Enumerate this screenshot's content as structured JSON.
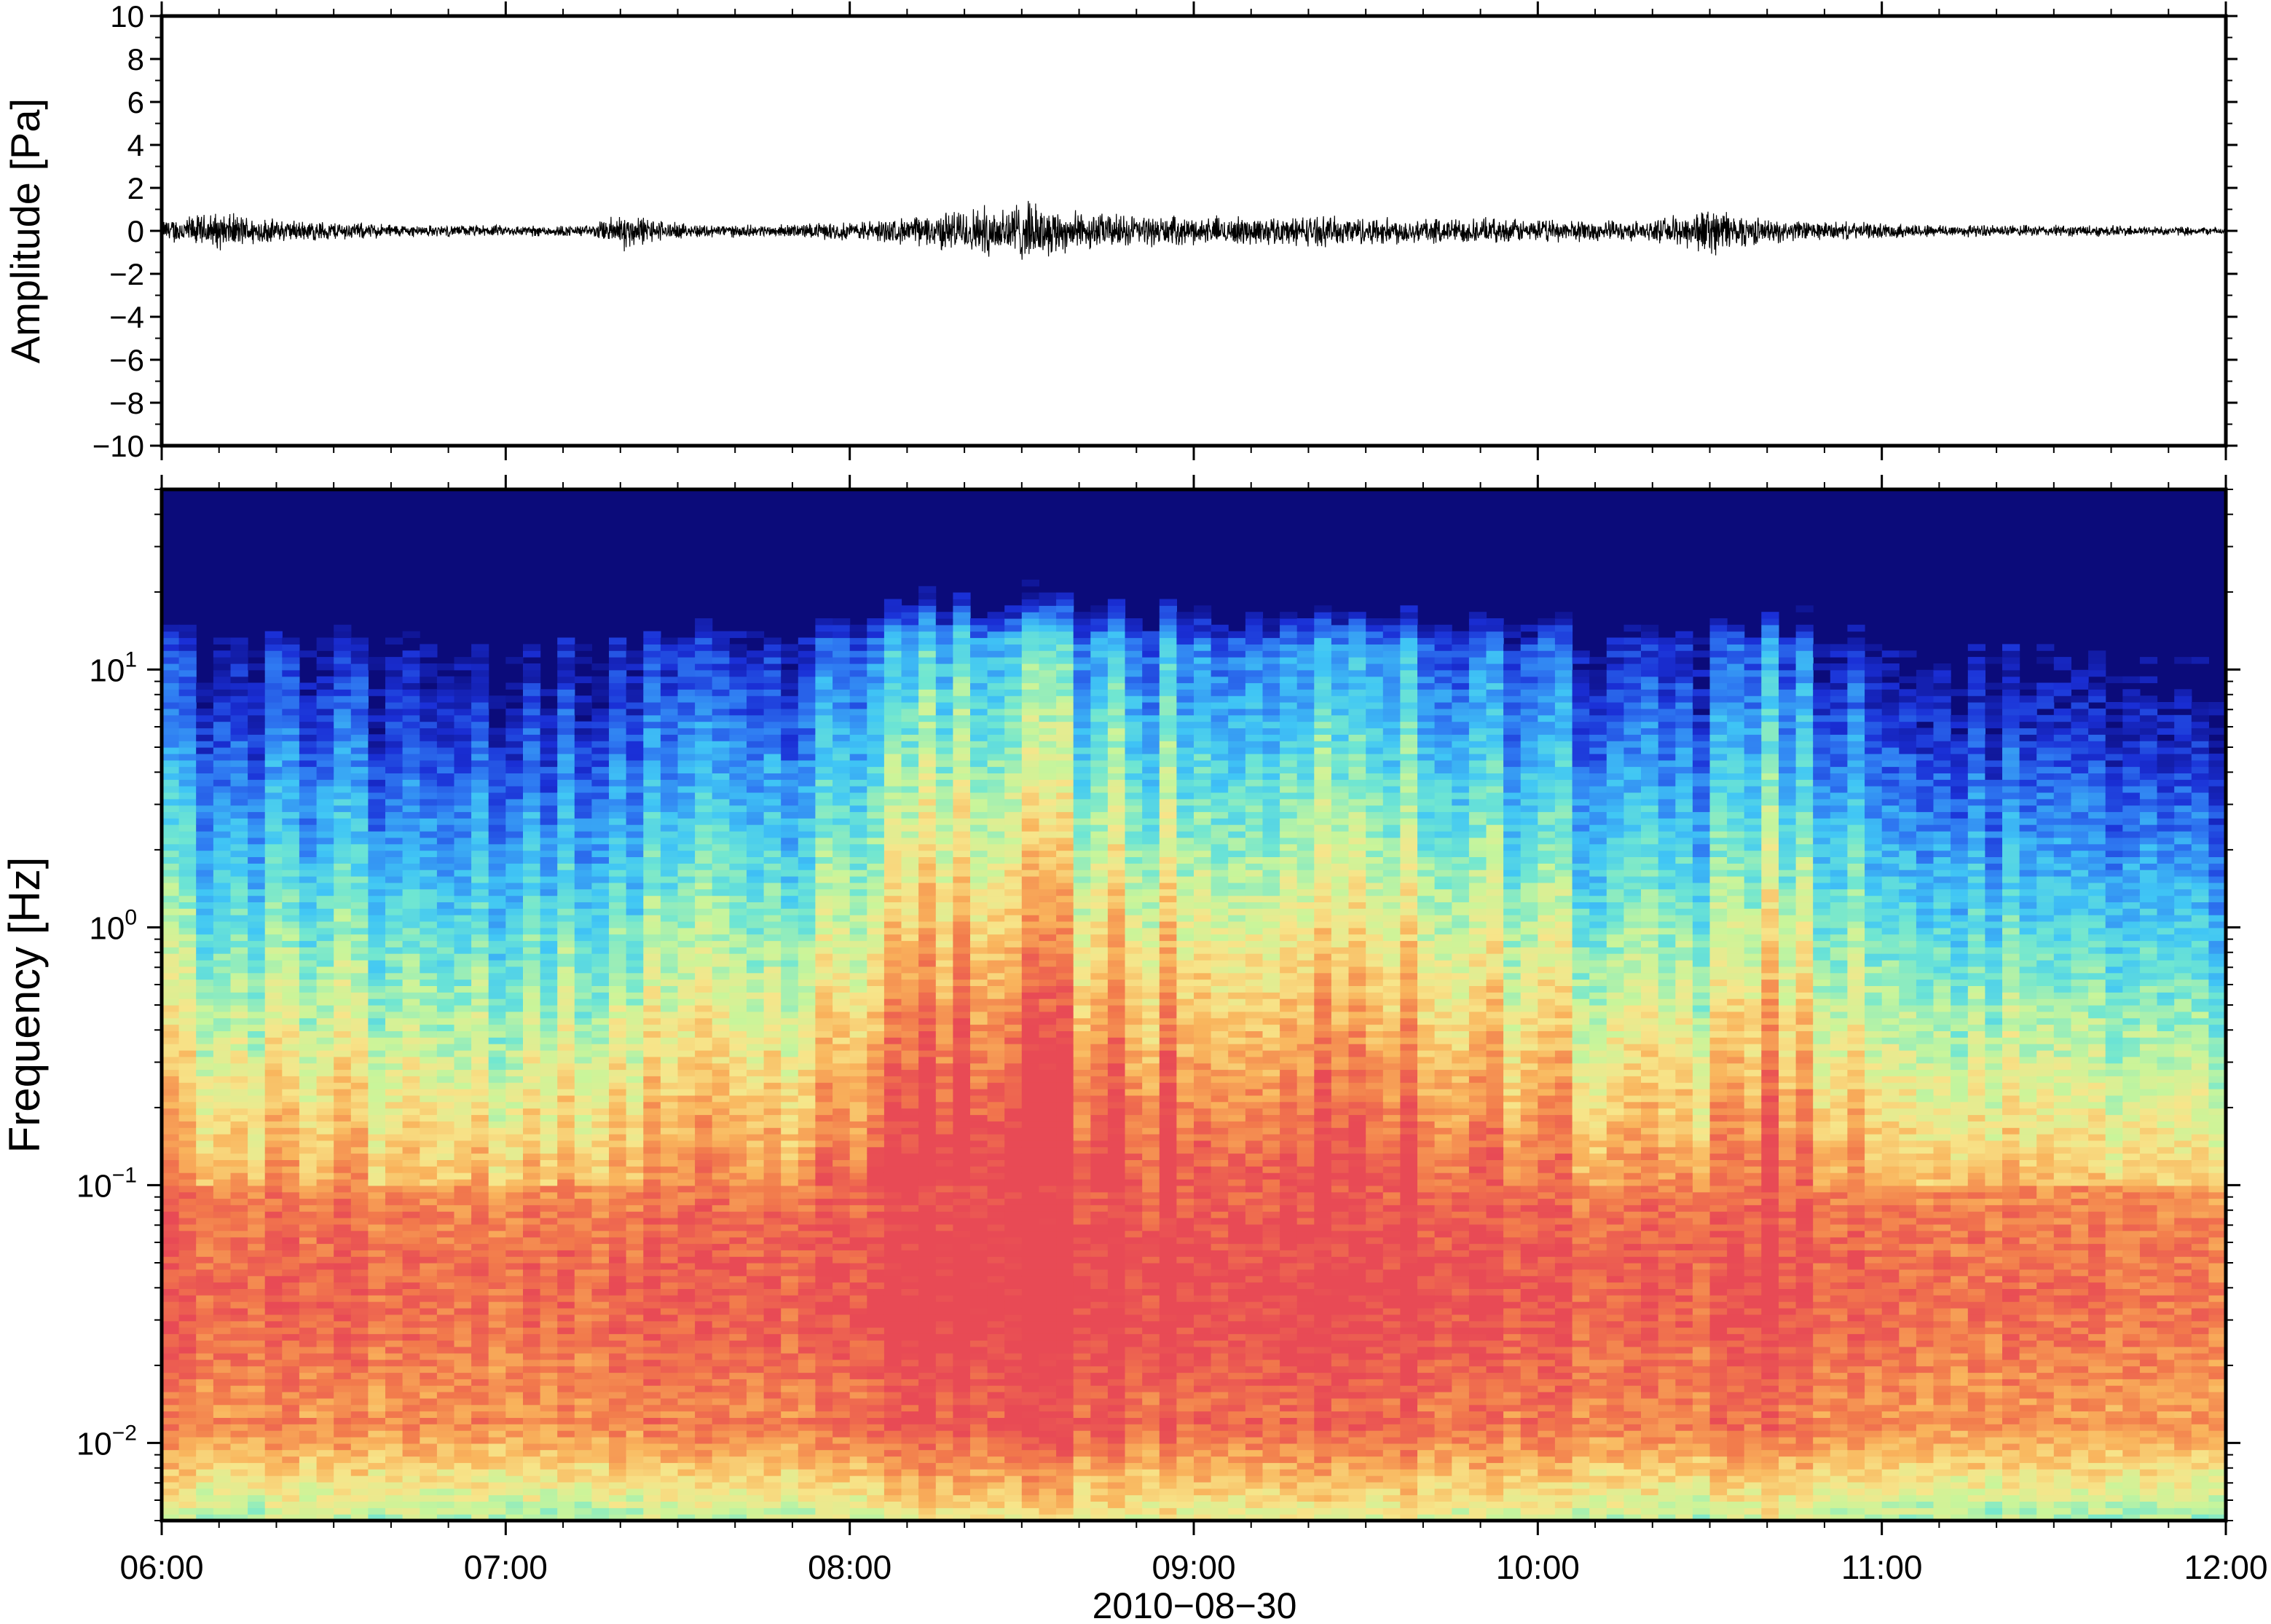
{
  "chart_data": [
    {
      "type": "line",
      "panel": "waveform",
      "ylabel": "Amplitude [Pa]",
      "ylim": [
        -10,
        10
      ],
      "yticks": [
        {
          "value": 10,
          "label": "10"
        },
        {
          "value": 8,
          "label": "8"
        },
        {
          "value": 6,
          "label": "6"
        },
        {
          "value": 4,
          "label": "4"
        },
        {
          "value": 2,
          "label": "2"
        },
        {
          "value": 0,
          "label": "0"
        },
        {
          "value": -2,
          "label": "−2"
        },
        {
          "value": -4,
          "label": "−4"
        },
        {
          "value": -6,
          "label": "−6"
        },
        {
          "value": -8,
          "label": "−8"
        },
        {
          "value": -10,
          "label": "−10"
        }
      ],
      "xlim": [
        "06:00",
        "12:00"
      ],
      "line_color": "#000000",
      "envelope": {
        "description_of_trace": "noise trace, peak amplitude envelope in Pa per time",
        "x": [
          "06:00",
          "06:10",
          "06:20",
          "06:30",
          "06:45",
          "07:00",
          "07:15",
          "07:20",
          "07:30",
          "07:45",
          "08:00",
          "08:10",
          "08:20",
          "08:30",
          "08:40",
          "09:00",
          "09:20",
          "09:40",
          "10:00",
          "10:20",
          "10:30",
          "10:40",
          "11:00",
          "11:20",
          "11:40",
          "12:00"
        ],
        "values": [
          0.6,
          1.0,
          0.6,
          0.5,
          0.3,
          0.3,
          0.3,
          1.0,
          0.4,
          0.3,
          0.5,
          0.7,
          1.2,
          1.6,
          1.0,
          0.7,
          0.8,
          0.7,
          0.6,
          0.5,
          1.3,
          0.6,
          0.4,
          0.3,
          0.3,
          0.2
        ]
      }
    },
    {
      "type": "heatmap",
      "panel": "spectrogram",
      "ylabel": "Frequency [Hz]",
      "yscale": "log",
      "ylim": [
        0.005,
        50
      ],
      "yticks": [
        {
          "value": 10,
          "base": "10",
          "exp": "1"
        },
        {
          "value": 1,
          "base": "10",
          "exp": "0"
        },
        {
          "value": 0.1,
          "base": "10",
          "exp": "−1"
        },
        {
          "value": 0.01,
          "base": "10",
          "exp": "−2"
        }
      ],
      "xlim": [
        "06:00",
        "12:00"
      ],
      "xticks": [
        "06:00",
        "07:00",
        "08:00",
        "09:00",
        "10:00",
        "11:00",
        "12:00"
      ],
      "xlabel": "2010−08−30",
      "colormap": [
        "#0b0b7a",
        "#1a2fd6",
        "#2f7bf2",
        "#40c6f5",
        "#6fe6d2",
        "#c9f59a",
        "#f7e58a",
        "#f9b45c",
        "#f27a4c",
        "#e84a55"
      ],
      "intensity_profile": {
        "time_hours": [
          6.0,
          6.5,
          7.0,
          7.5,
          8.0,
          8.33,
          8.5,
          9.0,
          9.4,
          10.0,
          10.5,
          10.67,
          11.0,
          11.5,
          12.0
        ],
        "activity": [
          0.55,
          0.5,
          0.45,
          0.55,
          0.6,
          0.95,
          0.85,
          0.75,
          0.85,
          0.6,
          0.55,
          0.7,
          0.5,
          0.45,
          0.4
        ]
      }
    }
  ]
}
